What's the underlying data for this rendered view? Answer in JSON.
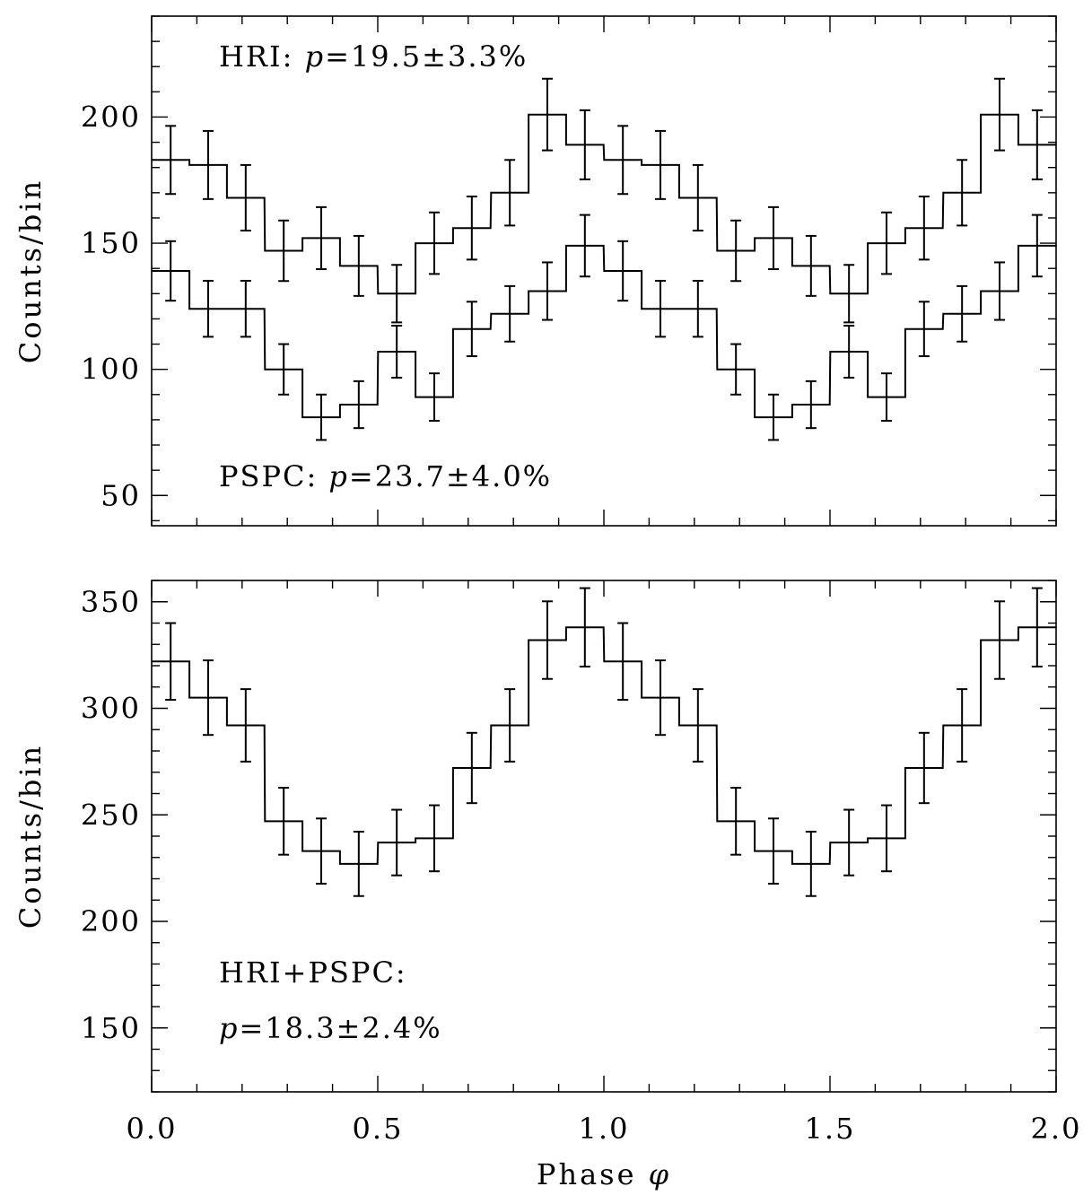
{
  "chart_data": [
    {
      "type": "line",
      "panel": "top",
      "drawstyle": "steps-mid",
      "ylabel": "Counts/bin",
      "xlabel": "",
      "xlim": [
        0.0,
        2.0
      ],
      "ylim": [
        38,
        240
      ],
      "yticks": [
        50,
        100,
        150,
        200
      ],
      "ytick_labels": [
        "50",
        "100",
        "150",
        "200"
      ],
      "xticks": [
        0.0,
        0.5,
        1.0,
        1.5,
        2.0
      ],
      "xtick_labels": [],
      "x": [
        0.042,
        0.125,
        0.208,
        0.292,
        0.375,
        0.458,
        0.542,
        0.625,
        0.708,
        0.792,
        0.875,
        0.958,
        1.042,
        1.125,
        1.208,
        1.292,
        1.375,
        1.458,
        1.542,
        1.625,
        1.708,
        1.792,
        1.875,
        1.958
      ],
      "series": [
        {
          "values": [
            183,
            181,
            168,
            147,
            152,
            141,
            130,
            150,
            156,
            170,
            201,
            189,
            183,
            181,
            168,
            147,
            152,
            141,
            130,
            150,
            156,
            170,
            201,
            189
          ],
          "errors": [
            13.5,
            13.5,
            13,
            12,
            12.3,
            11.9,
            11.4,
            12.2,
            12.5,
            13,
            14.2,
            13.7,
            13.5,
            13.5,
            13,
            12,
            12.3,
            11.9,
            11.4,
            12.2,
            12.5,
            13,
            14.2,
            13.7
          ]
        },
        {
          "values": [
            139,
            124,
            124,
            100,
            81,
            86,
            107,
            89,
            116,
            122,
            131,
            149,
            139,
            124,
            124,
            100,
            81,
            86,
            107,
            89,
            116,
            122,
            131,
            149
          ],
          "errors": [
            11.8,
            11.1,
            11.1,
            10,
            9,
            9.3,
            10.3,
            9.4,
            10.8,
            11,
            11.4,
            12.2,
            11.8,
            11.1,
            11.1,
            10,
            9,
            9.3,
            10.3,
            9.4,
            10.8,
            11,
            11.4,
            12.2
          ]
        }
      ],
      "annotations": [
        {
          "prefix": "HRI:  ",
          "variable": "p",
          "rest": "=19.5±3.3%"
        },
        {
          "prefix": "PSPC:  ",
          "variable": "p",
          "rest": "=23.7±4.0%"
        }
      ]
    },
    {
      "type": "line",
      "panel": "bottom",
      "drawstyle": "steps-mid",
      "ylabel": "Counts/bin",
      "xlabel": "Phase ",
      "xlabel_symbol": "φ",
      "xlim": [
        0.0,
        2.0
      ],
      "ylim": [
        120,
        360
      ],
      "yticks": [
        150,
        200,
        250,
        300,
        350
      ],
      "ytick_labels": [
        "150",
        "200",
        "250",
        "300",
        "350"
      ],
      "xticks": [
        0.0,
        0.5,
        1.0,
        1.5,
        2.0
      ],
      "xtick_labels": [
        "0.0",
        "0.5",
        "1.0",
        "1.5",
        "2.0"
      ],
      "x": [
        0.042,
        0.125,
        0.208,
        0.292,
        0.375,
        0.458,
        0.542,
        0.625,
        0.708,
        0.792,
        0.875,
        0.958,
        1.042,
        1.125,
        1.208,
        1.292,
        1.375,
        1.458,
        1.542,
        1.625,
        1.708,
        1.792,
        1.875,
        1.958
      ],
      "series": [
        {
          "values": [
            322,
            305,
            292,
            247,
            233,
            227,
            237,
            239,
            272,
            292,
            332,
            338,
            322,
            305,
            292,
            247,
            233,
            227,
            237,
            239,
            272,
            292,
            332,
            338
          ],
          "errors": [
            18,
            17.5,
            17,
            15.7,
            15.3,
            15.1,
            15.4,
            15.5,
            16.5,
            17,
            18.2,
            18.4,
            18,
            17.5,
            17,
            15.7,
            15.3,
            15.1,
            15.4,
            15.5,
            16.5,
            17,
            18.2,
            18.4
          ]
        }
      ],
      "annotations": [
        {
          "line1": "HRI+PSPC:",
          "variable": "p",
          "rest": "=18.3±2.4%"
        }
      ]
    }
  ]
}
